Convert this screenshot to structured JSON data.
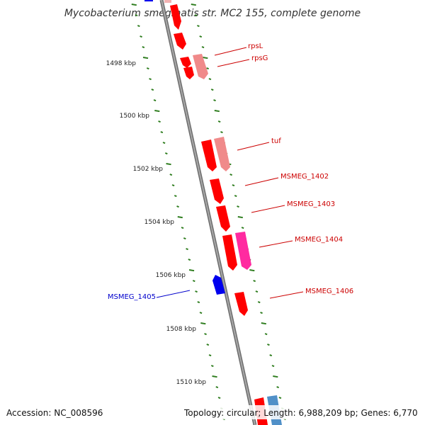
{
  "title": "Mycobacterium smegmatis str. MC2 155, complete genome",
  "footer": {
    "accession": "Accession: NC_008596",
    "summary": "Topology: circular; Length: 6,988,209 bp; Genes: 6,770"
  },
  "colors": {
    "backbone": "#8c8c8c",
    "tick": "#2e7d1e",
    "forward_gene": "#ff0000",
    "forward_label": "#cc0000",
    "reverse_gene": "#0000ee",
    "reverse_label": "#0000cc",
    "trna": "#e06060",
    "misc": "#ff2aa0",
    "other": "#5090c8"
  },
  "scale": {
    "ticks": [
      "1498 kbp",
      "1500 kbp",
      "1502 kbp",
      "1504 kbp",
      "1506 kbp",
      "1508 kbp",
      "1510 kbp"
    ]
  },
  "genes": [
    {
      "name": "rpsL",
      "strand": "forward",
      "type": "cds"
    },
    {
      "name": "rpsG",
      "strand": "forward",
      "type": "cds"
    },
    {
      "name": "tuf",
      "strand": "forward",
      "type": "cds"
    },
    {
      "name": "MSMEG_1402",
      "strand": "forward",
      "type": "cds"
    },
    {
      "name": "MSMEG_1403",
      "strand": "forward",
      "type": "cds"
    },
    {
      "name": "MSMEG_1404",
      "strand": "forward",
      "type": "cds"
    },
    {
      "name": "MSMEG_1405",
      "strand": "reverse",
      "type": "cds"
    },
    {
      "name": "MSMEG_1406",
      "strand": "forward",
      "type": "cds"
    }
  ]
}
